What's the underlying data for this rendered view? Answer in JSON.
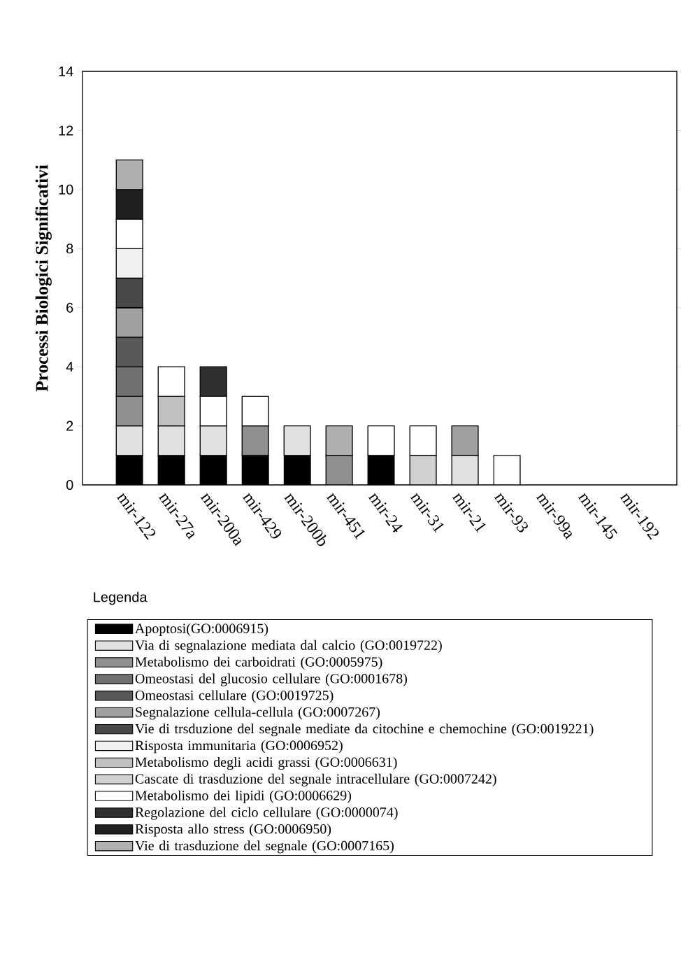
{
  "chart_data": {
    "type": "bar",
    "stacked": true,
    "ylabel": "Processi Biologici Significativi",
    "legend_title": "Legenda",
    "legend": "bottom",
    "categories": [
      "mir-122",
      "mir-27a",
      "mir-200a",
      "mir-429",
      "mir-200b",
      "mir-451",
      "mir-24",
      "mir-31",
      "mir-21",
      "mir-93",
      "mir-99a",
      "mir-145",
      "mir-192"
    ],
    "ylim": [
      0,
      14
    ],
    "yticks": [
      0,
      2,
      4,
      6,
      8,
      10,
      12,
      14
    ],
    "series": [
      {
        "name": "Apoptosi(GO:0006915)",
        "color": "#000000",
        "values": [
          1,
          1,
          1,
          1,
          1,
          null,
          1,
          null,
          null,
          null,
          null,
          null,
          null
        ]
      },
      {
        "name": "Via di segnalazione mediata dal calcio (GO:0019722)",
        "color": "#e0e0e0",
        "values": [
          1,
          1,
          1,
          null,
          1,
          null,
          null,
          null,
          1,
          null,
          null,
          null,
          null
        ]
      },
      {
        "name": "Metabolismo dei carboidrati  (GO:0005975)",
        "color": "#909090",
        "values": [
          1,
          null,
          null,
          1,
          null,
          1,
          null,
          null,
          null,
          null,
          null,
          null,
          null
        ]
      },
      {
        "name": "Omeostasi del glucosio  cellulare (GO:0001678)",
        "color": "#707070",
        "values": [
          1,
          null,
          null,
          null,
          null,
          null,
          null,
          null,
          null,
          null,
          null,
          null,
          null
        ]
      },
      {
        "name": "Omeostasi cellulare (GO:0019725)",
        "color": "#585858",
        "values": [
          1,
          null,
          null,
          null,
          null,
          null,
          null,
          null,
          null,
          null,
          null,
          null,
          null
        ]
      },
      {
        "name": "Segnalazione cellula-cellula (GO:0007267)",
        "color": "#a0a0a0",
        "values": [
          1,
          null,
          null,
          null,
          null,
          null,
          null,
          null,
          1,
          null,
          null,
          null,
          null
        ]
      },
      {
        "name": "Vie di trsduzione del segnale mediate da citochine e chemochine (GO:0019221)",
        "color": "#484848",
        "values": [
          1,
          null,
          null,
          null,
          null,
          null,
          null,
          null,
          null,
          null,
          null,
          null,
          null
        ]
      },
      {
        "name": "Risposta immunitaria (GO:0006952)",
        "color": "#f0f0f0",
        "values": [
          1,
          null,
          null,
          null,
          null,
          null,
          null,
          null,
          null,
          null,
          null,
          null,
          null
        ]
      },
      {
        "name": "Metabolismo degli acidi grassi (GO:0006631)",
        "color": "#c0c0c0",
        "values": [
          null,
          1,
          null,
          null,
          null,
          null,
          null,
          null,
          null,
          null,
          null,
          null,
          null
        ]
      },
      {
        "name": "Cascate di trasduzione del segnale intracellulare (GO:0007242)",
        "color": "#d0d0d0",
        "values": [
          null,
          null,
          null,
          null,
          null,
          null,
          null,
          1,
          null,
          null,
          null,
          null,
          null
        ]
      },
      {
        "name": "Metabolismo dei lipidi  (GO:0006629)",
        "color": "#ffffff",
        "values": [
          1,
          1,
          1,
          1,
          null,
          null,
          1,
          1,
          null,
          1,
          null,
          null,
          null
        ]
      },
      {
        "name": "Regolazione del ciclo cellulare  (GO:0000074)",
        "color": "#303030",
        "values": [
          null,
          null,
          1,
          null,
          null,
          null,
          null,
          null,
          null,
          null,
          null,
          null,
          null
        ]
      },
      {
        "name": "Risposta allo stress (GO:0006950)",
        "color": "#202020",
        "values": [
          1,
          null,
          null,
          null,
          null,
          null,
          null,
          null,
          null,
          null,
          null,
          null,
          null
        ]
      },
      {
        "name": "Vie di trasduzione del segnale (GO:0007165)",
        "color": "#b0b0b0",
        "values": [
          1,
          null,
          null,
          null,
          null,
          1,
          null,
          null,
          null,
          null,
          null,
          null,
          null
        ]
      }
    ]
  }
}
